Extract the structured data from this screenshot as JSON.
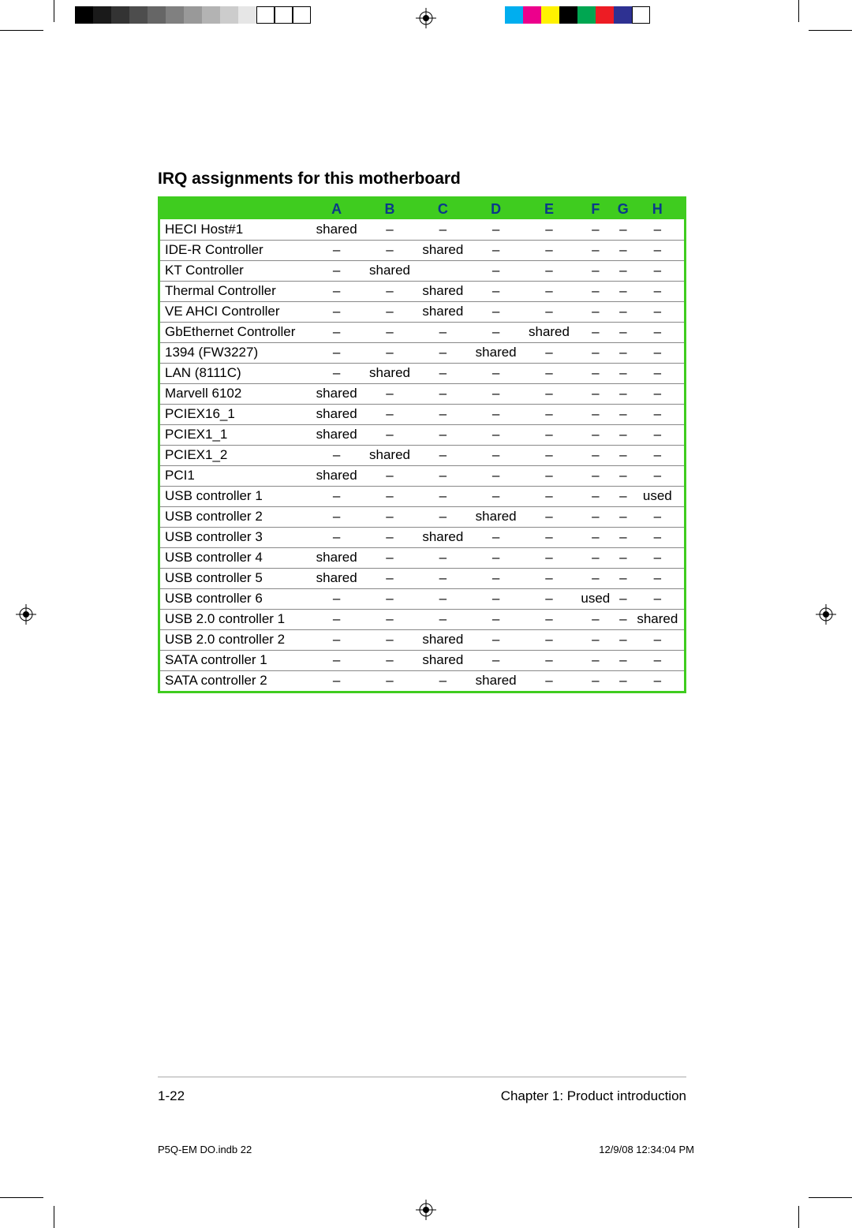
{
  "title": "IRQ assignments for this motherboard",
  "table": {
    "type": "table",
    "header_bg": "#3fcc1f",
    "header_text_color": "#0a3a8a",
    "border_color": "#3fcc1f",
    "row_border_color": "#888888",
    "background_color": "#ffffff",
    "font_size": 17,
    "columns": [
      "",
      "A",
      "B",
      "C",
      "D",
      "E",
      "F",
      "G",
      "H"
    ],
    "rows": [
      [
        "HECI Host#1",
        "shared",
        "–",
        "–",
        "–",
        "–",
        "–",
        "–",
        "–"
      ],
      [
        "IDE-R Controller",
        "–",
        "–",
        "shared",
        "–",
        "–",
        "–",
        "–",
        "–"
      ],
      [
        "KT Controller",
        "–",
        "shared",
        "",
        "–",
        "–",
        "–",
        "–",
        "–"
      ],
      [
        "Thermal Controller",
        "–",
        "–",
        "shared",
        "–",
        "–",
        "–",
        "–",
        "–"
      ],
      [
        "VE AHCI Controller",
        "–",
        "–",
        "shared",
        "–",
        "–",
        "–",
        "–",
        "–"
      ],
      [
        "GbEthernet Controller",
        "–",
        "–",
        "–",
        "–",
        "shared",
        "–",
        "–",
        "–"
      ],
      [
        "1394 (FW3227)",
        "–",
        "–",
        "–",
        "shared",
        "–",
        "–",
        "–",
        "–"
      ],
      [
        "LAN (8111C)",
        "–",
        "shared",
        "–",
        "–",
        "–",
        "–",
        "–",
        "–"
      ],
      [
        "Marvell 6102",
        "shared",
        "–",
        "–",
        "–",
        "–",
        "–",
        "–",
        "–"
      ],
      [
        "PCIEX16_1",
        "shared",
        "–",
        "–",
        "–",
        "–",
        "–",
        "–",
        "–"
      ],
      [
        "PCIEX1_1",
        "shared",
        "–",
        "–",
        "–",
        "–",
        "–",
        "–",
        "–"
      ],
      [
        "PCIEX1_2",
        "–",
        "shared",
        "–",
        "–",
        "–",
        "–",
        "–",
        "–"
      ],
      [
        "PCI1",
        "shared",
        "–",
        "–",
        "–",
        "–",
        "–",
        "–",
        "–"
      ],
      [
        "USB controller 1",
        "–",
        "–",
        "–",
        "–",
        "–",
        "–",
        "–",
        "used"
      ],
      [
        "USB controller 2",
        "–",
        "–",
        "–",
        "shared",
        "–",
        "–",
        "–",
        "–"
      ],
      [
        "USB controller 3",
        "–",
        "–",
        "shared",
        "–",
        "–",
        "–",
        "–",
        "–"
      ],
      [
        "USB controller 4",
        "shared",
        "–",
        "–",
        "–",
        "–",
        "–",
        "–",
        "–"
      ],
      [
        "USB controller 5",
        "shared",
        "–",
        "–",
        "–",
        "–",
        "–",
        "–",
        "–"
      ],
      [
        "USB controller 6",
        "–",
        "–",
        "–",
        "–",
        "–",
        "used",
        "–",
        "–"
      ],
      [
        "USB 2.0 controller 1",
        "–",
        "–",
        "–",
        "–",
        "–",
        "–",
        "–",
        "shared"
      ],
      [
        "USB 2.0 controller 2",
        "–",
        "–",
        "shared",
        "–",
        "–",
        "–",
        "–",
        "–"
      ],
      [
        "SATA controller 1",
        "–",
        "–",
        "shared",
        "–",
        "–",
        "–",
        "–",
        "–"
      ],
      [
        "SATA controller 2",
        "–",
        "–",
        "–",
        "shared",
        "–",
        "–",
        "–",
        "–"
      ]
    ]
  },
  "footer": {
    "page_number": "1-22",
    "chapter": "Chapter 1: Product introduction"
  },
  "slug": {
    "file": "P5Q-EM DO.indb   22",
    "datetime": "12/9/08   12:34:04 PM"
  },
  "printers_marks": {
    "grayscale_bar": [
      "#000000",
      "#1a1a1a",
      "#333333",
      "#4d4d4d",
      "#666666",
      "#808080",
      "#999999",
      "#b3b3b3",
      "#cccccc",
      "#e6e6e6",
      "#ffffff",
      "#ffffff",
      "#ffffff"
    ],
    "color_bar": [
      "#00aeef",
      "#ec008c",
      "#fff200",
      "#000000",
      "#00a651",
      "#ed1c24",
      "#2e3192",
      "#ffffff"
    ],
    "crop_color": "#000000"
  }
}
